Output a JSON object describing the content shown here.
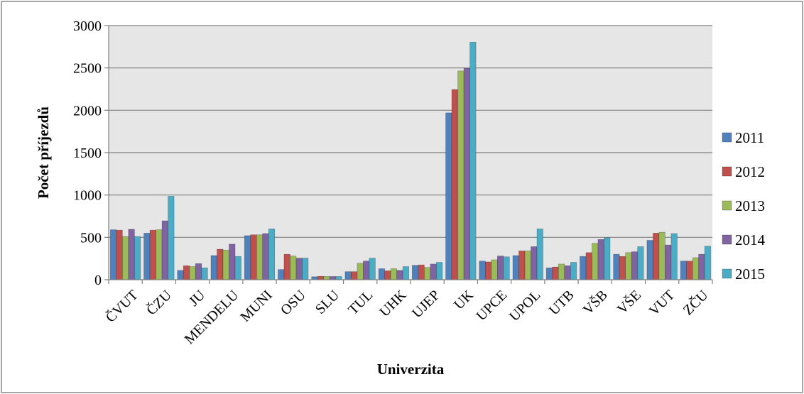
{
  "chart_data": {
    "type": "bar",
    "title": "",
    "xlabel": "Univerzita",
    "ylabel": "Počet příjezdů",
    "ylim": [
      0,
      3000
    ],
    "yticks": [
      0,
      500,
      1000,
      1500,
      2000,
      2500,
      3000
    ],
    "grid": true,
    "legend_position": "right",
    "categories": [
      "ČVUT",
      "ČZU",
      "JU",
      "MENDELU",
      "MUNI",
      "OSU",
      "SLU",
      "TUL",
      "UHK",
      "UJEP",
      "UK",
      "UPCE",
      "UPOL",
      "UTB",
      "VŠB",
      "VŠE",
      "VUT",
      "ZČU"
    ],
    "series": [
      {
        "name": "2011",
        "color": "#4F81BD",
        "values": [
          590,
          550,
          110,
          285,
          520,
          120,
          35,
          95,
          130,
          170,
          1970,
          220,
          285,
          140,
          275,
          300,
          465,
          220
        ]
      },
      {
        "name": "2012",
        "color": "#C0504D",
        "values": [
          585,
          585,
          165,
          360,
          530,
          300,
          40,
          95,
          105,
          175,
          2245,
          210,
          340,
          150,
          320,
          275,
          550,
          220
        ]
      },
      {
        "name": "2013",
        "color": "#9BBB59",
        "values": [
          510,
          590,
          155,
          350,
          530,
          280,
          38,
          195,
          130,
          145,
          2465,
          235,
          340,
          185,
          430,
          320,
          560,
          260
        ]
      },
      {
        "name": "2014",
        "color": "#8064A2",
        "values": [
          595,
          695,
          190,
          420,
          545,
          255,
          38,
          220,
          110,
          185,
          2495,
          280,
          390,
          165,
          475,
          330,
          410,
          300
        ]
      },
      {
        "name": "2015",
        "color": "#4BACC6",
        "values": [
          510,
          985,
          140,
          275,
          600,
          255,
          38,
          255,
          155,
          205,
          2805,
          270,
          600,
          205,
          495,
          390,
          545,
          395
        ]
      }
    ]
  }
}
